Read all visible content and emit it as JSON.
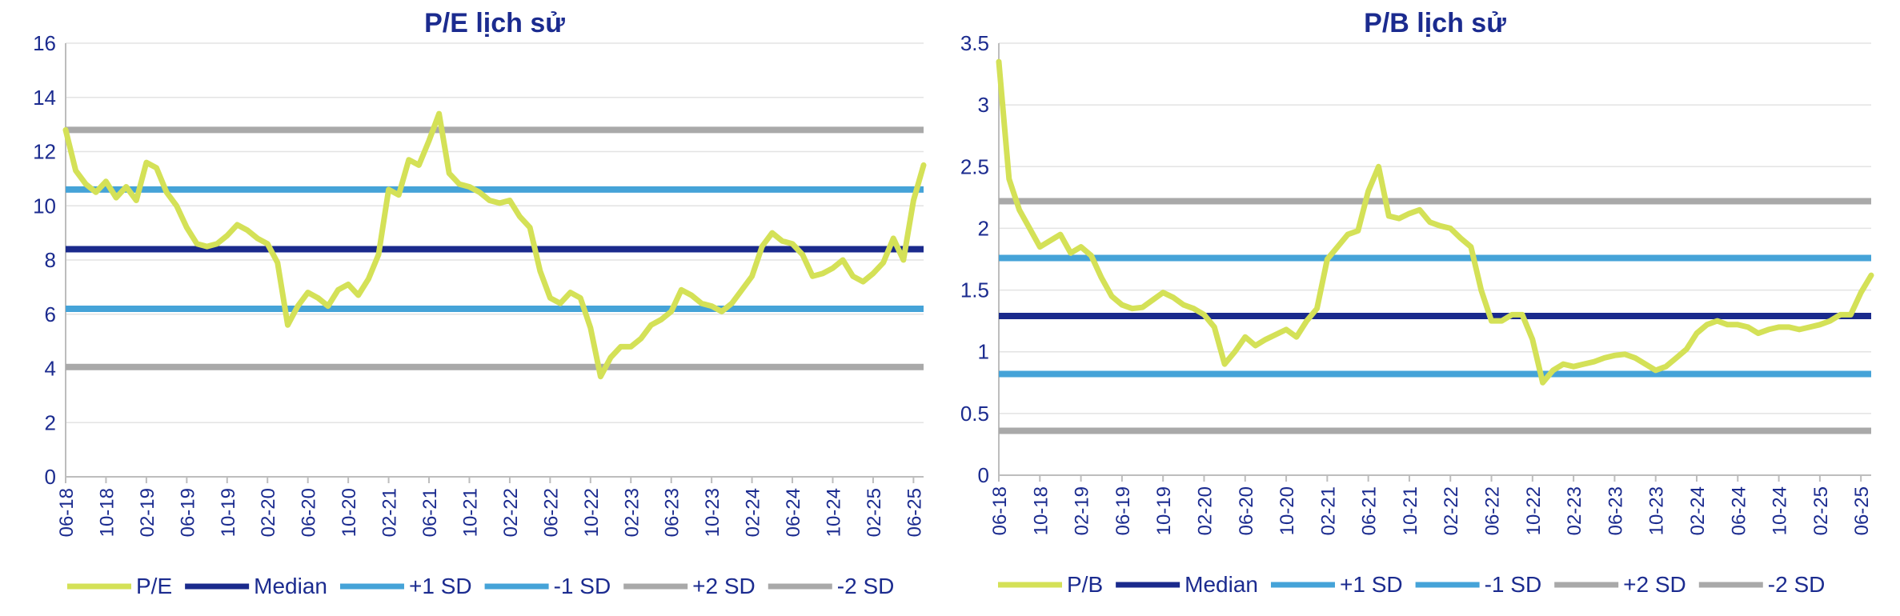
{
  "charts": [
    {
      "chart_data": {
        "type": "line",
        "title": "P/E lịch sử",
        "ylim": [
          0,
          16
        ],
        "yticks": [
          "0",
          "2",
          "4",
          "6",
          "8",
          "10",
          "12",
          "14",
          "16"
        ],
        "xticks": [
          "06-18",
          "10-18",
          "02-19",
          "06-19",
          "10-19",
          "02-20",
          "06-20",
          "10-20",
          "02-21",
          "06-21",
          "10-21",
          "02-22",
          "06-22",
          "10-22",
          "02-23",
          "06-23",
          "10-23",
          "02-24",
          "06-24",
          "10-24",
          "02-25",
          "06-25"
        ],
        "grid": "horizontal",
        "legend_position": "bottom",
        "series": [
          {
            "name": "P/E",
            "color": "#d4e157",
            "x": [
              "06-18",
              "07-18",
              "08-18",
              "09-18",
              "10-18",
              "11-18",
              "12-18",
              "01-19",
              "02-19",
              "03-19",
              "04-19",
              "05-19",
              "06-19",
              "07-19",
              "08-19",
              "09-19",
              "10-19",
              "11-19",
              "12-19",
              "01-20",
              "02-20",
              "03-20",
              "04-20",
              "05-20",
              "06-20",
              "07-20",
              "08-20",
              "09-20",
              "10-20",
              "11-20",
              "12-20",
              "01-21",
              "02-21",
              "03-21",
              "04-21",
              "05-21",
              "06-21",
              "07-21",
              "08-21",
              "09-21",
              "10-21",
              "11-21",
              "12-21",
              "01-22",
              "02-22",
              "03-22",
              "04-22",
              "05-22",
              "06-22",
              "07-22",
              "08-22",
              "09-22",
              "10-22",
              "11-22",
              "12-22",
              "01-23",
              "02-23",
              "03-23",
              "04-23",
              "05-23",
              "06-23",
              "07-23",
              "08-23",
              "09-23",
              "10-23",
              "11-23",
              "12-23",
              "01-24",
              "02-24",
              "03-24",
              "04-24",
              "05-24",
              "06-24",
              "07-24",
              "08-24",
              "09-24",
              "10-24",
              "11-24",
              "12-24",
              "01-25",
              "02-25",
              "03-25",
              "04-25",
              "05-25",
              "06-25",
              "07-25"
            ],
            "values": [
              12.8,
              11.3,
              10.8,
              10.5,
              10.9,
              10.3,
              10.7,
              10.2,
              11.6,
              11.4,
              10.5,
              10.0,
              9.2,
              8.6,
              8.5,
              8.6,
              8.9,
              9.3,
              9.1,
              8.8,
              8.6,
              7.9,
              5.6,
              6.3,
              6.8,
              6.6,
              6.3,
              6.9,
              7.1,
              6.7,
              7.3,
              8.2,
              10.6,
              10.4,
              11.7,
              11.5,
              12.4,
              13.4,
              11.2,
              10.8,
              10.7,
              10.5,
              10.2,
              10.1,
              10.2,
              9.6,
              9.2,
              7.6,
              6.6,
              6.4,
              6.8,
              6.6,
              5.5,
              3.7,
              4.4,
              4.8,
              4.8,
              5.1,
              5.6,
              5.8,
              6.1,
              6.9,
              6.7,
              6.4,
              6.3,
              6.1,
              6.4,
              6.9,
              7.4,
              8.5,
              9.0,
              8.7,
              8.6,
              8.2,
              7.4,
              7.5,
              7.7,
              8.0,
              7.4,
              7.2,
              7.5,
              7.9,
              8.8,
              8.0,
              10.2,
              11.5
            ]
          },
          {
            "name": "Median",
            "color": "#1a2a8c",
            "values": [
              8.4
            ]
          },
          {
            "name": "+1 SD",
            "color": "#45a3d8",
            "values": [
              10.6
            ]
          },
          {
            "name": "-1 SD",
            "color": "#45a3d8",
            "values": [
              6.2
            ]
          },
          {
            "name": "+2 SD",
            "color": "#a9a9a9",
            "values": [
              12.8
            ]
          },
          {
            "name": "-2 SD",
            "color": "#a9a9a9",
            "values": [
              4.05
            ]
          }
        ]
      }
    },
    {
      "chart_data": {
        "type": "line",
        "title": "P/B lịch sử",
        "ylim": [
          0,
          3.5
        ],
        "yticks": [
          "0",
          "0.5",
          "1",
          "1.5",
          "2",
          "2.5",
          "3",
          "3.5"
        ],
        "xticks": [
          "06-18",
          "10-18",
          "02-19",
          "06-19",
          "10-19",
          "02-20",
          "06-20",
          "10-20",
          "02-21",
          "06-21",
          "10-21",
          "02-22",
          "06-22",
          "10-22",
          "02-23",
          "06-23",
          "10-23",
          "02-24",
          "06-24",
          "10-24",
          "02-25",
          "06-25"
        ],
        "grid": "horizontal",
        "legend_position": "bottom",
        "series": [
          {
            "name": "P/B",
            "color": "#d4e157",
            "x": [
              "06-18",
              "07-18",
              "08-18",
              "09-18",
              "10-18",
              "11-18",
              "12-18",
              "01-19",
              "02-19",
              "03-19",
              "04-19",
              "05-19",
              "06-19",
              "07-19",
              "08-19",
              "09-19",
              "10-19",
              "11-19",
              "12-19",
              "01-20",
              "02-20",
              "03-20",
              "04-20",
              "05-20",
              "06-20",
              "07-20",
              "08-20",
              "09-20",
              "10-20",
              "11-20",
              "12-20",
              "01-21",
              "02-21",
              "03-21",
              "04-21",
              "05-21",
              "06-21",
              "07-21",
              "08-21",
              "09-21",
              "10-21",
              "11-21",
              "12-21",
              "01-22",
              "02-22",
              "03-22",
              "04-22",
              "05-22",
              "06-22",
              "07-22",
              "08-22",
              "09-22",
              "10-22",
              "11-22",
              "12-22",
              "01-23",
              "02-23",
              "03-23",
              "04-23",
              "05-23",
              "06-23",
              "07-23",
              "08-23",
              "09-23",
              "10-23",
              "11-23",
              "12-23",
              "01-24",
              "02-24",
              "03-24",
              "04-24",
              "05-24",
              "06-24",
              "07-24",
              "08-24",
              "09-24",
              "10-24",
              "11-24",
              "12-24",
              "01-25",
              "02-25",
              "03-25",
              "04-25",
              "05-25",
              "06-25",
              "07-25"
            ],
            "values": [
              3.35,
              2.4,
              2.15,
              2.0,
              1.85,
              1.9,
              1.95,
              1.8,
              1.85,
              1.78,
              1.6,
              1.45,
              1.38,
              1.35,
              1.36,
              1.42,
              1.48,
              1.44,
              1.38,
              1.35,
              1.3,
              1.2,
              0.9,
              1.0,
              1.12,
              1.05,
              1.1,
              1.14,
              1.18,
              1.12,
              1.25,
              1.35,
              1.75,
              1.85,
              1.95,
              1.98,
              2.3,
              2.5,
              2.1,
              2.08,
              2.12,
              2.15,
              2.05,
              2.02,
              2.0,
              1.92,
              1.85,
              1.5,
              1.25,
              1.25,
              1.3,
              1.3,
              1.1,
              0.75,
              0.85,
              0.9,
              0.88,
              0.9,
              0.92,
              0.95,
              0.97,
              0.98,
              0.95,
              0.9,
              0.85,
              0.88,
              0.95,
              1.02,
              1.15,
              1.22,
              1.25,
              1.22,
              1.22,
              1.2,
              1.15,
              1.18,
              1.2,
              1.2,
              1.18,
              1.2,
              1.22,
              1.25,
              1.3,
              1.3,
              1.48,
              1.62
            ]
          },
          {
            "name": "Median",
            "color": "#1a2a8c",
            "values": [
              1.29
            ]
          },
          {
            "name": "+1 SD",
            "color": "#45a3d8",
            "values": [
              1.76
            ]
          },
          {
            "name": "-1 SD",
            "color": "#45a3d8",
            "values": [
              0.82
            ]
          },
          {
            "name": "+2 SD",
            "color": "#a9a9a9",
            "values": [
              2.22
            ]
          },
          {
            "name": "-2 SD",
            "color": "#a9a9a9",
            "values": [
              0.36
            ]
          }
        ]
      }
    }
  ]
}
